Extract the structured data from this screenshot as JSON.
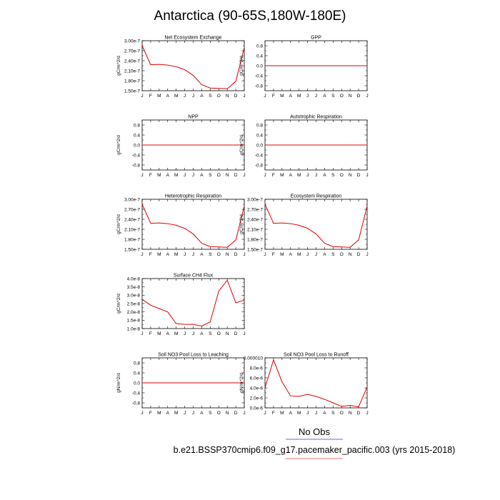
{
  "figure": {
    "title": "Antarctica (90-65S,180W-180E)",
    "legend_label": "No Obs",
    "case_label": "b.e21.BSSP370cmip6.f09_g17.pacemaker_pacific.003 (yrs 2015-2018)",
    "line_color": "#e00000",
    "legend_line_color": "#6a6ad0",
    "case_underline_color": "#e07070"
  },
  "chart_data": [
    {
      "type": "line",
      "title": "Net Ecosystem Exchange",
      "ylabel": "gC/m^2/d",
      "categories": [
        "J",
        "F",
        "M",
        "A",
        "M",
        "J",
        "J",
        "A",
        "S",
        "O",
        "N",
        "D",
        "J"
      ],
      "ylim": [
        1.5e-07,
        3e-07
      ],
      "yticks": [
        1.5e-07,
        1.8e-07,
        2.1e-07,
        2.4e-07,
        2.7e-07,
        3e-07
      ],
      "ytick_labels": [
        "1.50e-7",
        "1.80e-7",
        "2.10e-7",
        "2.40e-7",
        "2.70e-7",
        "3.00e-7"
      ],
      "values": [
        2.85e-07,
        2.28e-07,
        2.29e-07,
        2.27e-07,
        2.22e-07,
        2.13e-07,
        1.96e-07,
        1.68e-07,
        1.58e-07,
        1.57e-07,
        1.56e-07,
        1.78e-07,
        2.8e-07
      ]
    },
    {
      "type": "line",
      "title": "GPP",
      "ylabel": "gC/m^2/d",
      "categories": [
        "J",
        "F",
        "M",
        "A",
        "M",
        "J",
        "J",
        "A",
        "S",
        "O",
        "N",
        "D",
        "J"
      ],
      "ylim": [
        -1.0,
        1.0
      ],
      "yticks": [
        -0.8,
        -0.4,
        0.0,
        0.4,
        0.8
      ],
      "ytick_labels": [
        "-0.8",
        "-0.4",
        "0.0",
        "0.4",
        "0.8"
      ],
      "values": [
        0,
        0,
        0,
        0,
        0,
        0,
        0,
        0,
        0,
        0,
        0,
        0,
        0
      ]
    },
    {
      "type": "line",
      "title": "NPP",
      "ylabel": "gC/m^2/d",
      "categories": [
        "J",
        "F",
        "M",
        "A",
        "M",
        "J",
        "J",
        "A",
        "S",
        "O",
        "N",
        "D",
        "J"
      ],
      "ylim": [
        -1.0,
        1.0
      ],
      "yticks": [
        -0.8,
        -0.4,
        0.0,
        0.4,
        0.8
      ],
      "ytick_labels": [
        "-0.8",
        "-0.4",
        "0.0",
        "0.4",
        "0.8"
      ],
      "values": [
        0,
        0,
        0,
        0,
        0,
        0,
        0,
        0,
        0,
        0,
        0,
        0,
        0
      ]
    },
    {
      "type": "line",
      "title": "Autotrophic Respiration",
      "ylabel": "gC/m^2/d",
      "categories": [
        "J",
        "F",
        "M",
        "A",
        "M",
        "J",
        "J",
        "A",
        "S",
        "O",
        "N",
        "D",
        "J"
      ],
      "ylim": [
        -1.0,
        1.0
      ],
      "yticks": [
        -0.8,
        -0.4,
        0.0,
        0.4,
        0.8
      ],
      "ytick_labels": [
        "-0.8",
        "-0.4",
        "0.0",
        "0.4",
        "0.8"
      ],
      "values": [
        0,
        0,
        0,
        0,
        0,
        0,
        0,
        0,
        0,
        0,
        0,
        0,
        0
      ]
    },
    {
      "type": "line",
      "title": "Heterotrophic Respiration",
      "ylabel": "gC/m^2/d",
      "categories": [
        "J",
        "F",
        "M",
        "A",
        "M",
        "J",
        "J",
        "A",
        "S",
        "O",
        "N",
        "D",
        "J"
      ],
      "ylim": [
        1.5e-07,
        3e-07
      ],
      "yticks": [
        1.5e-07,
        1.8e-07,
        2.1e-07,
        2.4e-07,
        2.7e-07,
        3e-07
      ],
      "ytick_labels": [
        "1.50e-7",
        "1.80e-7",
        "2.10e-7",
        "2.40e-7",
        "2.70e-7",
        "3.00e-7"
      ],
      "values": [
        2.85e-07,
        2.28e-07,
        2.29e-07,
        2.27e-07,
        2.22e-07,
        2.13e-07,
        1.96e-07,
        1.68e-07,
        1.58e-07,
        1.57e-07,
        1.56e-07,
        1.78e-07,
        2.8e-07
      ]
    },
    {
      "type": "line",
      "title": "Ecosystem Respiration",
      "ylabel": "gC/m^2/d",
      "categories": [
        "J",
        "F",
        "M",
        "A",
        "M",
        "J",
        "J",
        "A",
        "S",
        "O",
        "N",
        "D",
        "J"
      ],
      "ylim": [
        1.5e-07,
        3e-07
      ],
      "yticks": [
        1.5e-07,
        1.8e-07,
        2.1e-07,
        2.4e-07,
        2.7e-07,
        3e-07
      ],
      "ytick_labels": [
        "1.50e-7",
        "1.80e-7",
        "2.10e-7",
        "2.40e-7",
        "2.70e-7",
        "3.00e-7"
      ],
      "values": [
        2.85e-07,
        2.28e-07,
        2.29e-07,
        2.27e-07,
        2.22e-07,
        2.13e-07,
        1.96e-07,
        1.68e-07,
        1.58e-07,
        1.57e-07,
        1.56e-07,
        1.78e-07,
        2.8e-07
      ]
    },
    {
      "type": "line",
      "title": "Surface CH4 Flux",
      "ylabel": "gC/m^2/d",
      "categories": [
        "J",
        "F",
        "M",
        "A",
        "M",
        "J",
        "J",
        "A",
        "S",
        "O",
        "N",
        "D",
        "J"
      ],
      "ylim": [
        1e-08,
        4e-08
      ],
      "yticks": [
        1e-08,
        1.5e-08,
        2e-08,
        2.5e-08,
        3e-08,
        3.5e-08,
        4e-08
      ],
      "ytick_labels": [
        "1.0e-8",
        "1.5e-8",
        "2.0e-8",
        "2.5e-8",
        "3.0e-8",
        "3.5e-8",
        "4.0e-8"
      ],
      "values": [
        2.75e-08,
        2.4e-08,
        2.2e-08,
        2e-08,
        1.3e-08,
        1.25e-08,
        1.25e-08,
        1.15e-08,
        1.4e-08,
        3.25e-08,
        3.9e-08,
        2.55e-08,
        2.7e-08
      ]
    },
    null,
    {
      "type": "line",
      "title": "Soil NO3 Pool Loss to Leaching",
      "ylabel": "gN/m^2/d",
      "categories": [
        "J",
        "F",
        "M",
        "A",
        "M",
        "J",
        "J",
        "A",
        "S",
        "O",
        "N",
        "D",
        "J"
      ],
      "ylim": [
        -1.0,
        1.0
      ],
      "yticks": [
        -0.8,
        -0.4,
        0.0,
        0.4,
        0.8
      ],
      "ytick_labels": [
        "-0.8",
        "-0.4",
        "0.0",
        "0.4",
        "0.8"
      ],
      "values": [
        0,
        0,
        0,
        0,
        0,
        0,
        0,
        0,
        0,
        0,
        0,
        0,
        0
      ]
    },
    {
      "type": "line",
      "title": "Soil NO3 Pool Loss to Runoff",
      "ylabel": "gN/m^2/d",
      "categories": [
        "J",
        "F",
        "M",
        "A",
        "M",
        "J",
        "J",
        "A",
        "S",
        "O",
        "N",
        "D",
        "J"
      ],
      "ylim": [
        0,
        1e-05
      ],
      "yticks": [
        0,
        2e-06,
        4e-06,
        6e-06,
        8e-06,
        1e-05
      ],
      "ytick_labels": [
        "0.0e-6",
        "2.0e-6",
        "4.0e-6",
        "6.0e-6",
        "8.0e-6",
        "0.000010"
      ],
      "values": [
        4e-06,
        9.6e-06,
        5.2e-06,
        2.4e-06,
        2.3e-06,
        2.7e-06,
        2.3e-06,
        1.7e-06,
        1e-06,
        3e-07,
        5e-07,
        2e-07,
        4.2e-06
      ]
    }
  ]
}
